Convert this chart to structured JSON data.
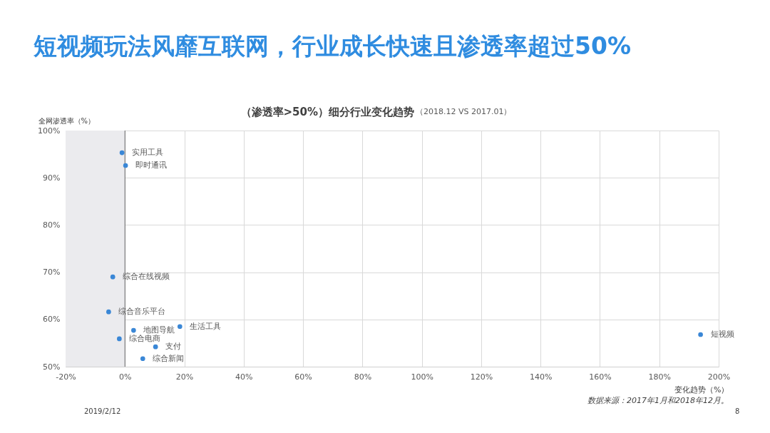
{
  "chart_data": {
    "type": "scatter",
    "title": "短视频玩法风靡互联网，行业成长快速且渗透率超过50%",
    "subtitle": "（渗透率>50%）细分行业变化趋势",
    "xlabel": "变化趋势（%）",
    "ylabel": "全网渗透率（%）",
    "annotations": [
      "（2018.12  VS 2017.01）",
      "数据来源：2017年1月和2018年12月。",
      "2019/2/12",
      "8"
    ],
    "series": [
      {
        "name": "实用工具",
        "color": "#3a87d6",
        "x": [
          -1.0
        ],
        "values": [
          95.3
        ]
      },
      {
        "name": "即时通讯",
        "color": "#3a87d6",
        "x": [
          0.2
        ],
        "values": [
          92.6
        ]
      },
      {
        "name": "综合在线视频",
        "color": "#3a87d6",
        "x": [
          -4.1
        ],
        "values": [
          69.0
        ]
      },
      {
        "name": "综合音乐平台",
        "color": "#3a87d6",
        "x": [
          -5.5
        ],
        "values": [
          61.6
        ]
      },
      {
        "name": "地图导航",
        "color": "#3a87d6",
        "x": [
          2.9
        ],
        "values": [
          57.7
        ]
      },
      {
        "name": "生活工具",
        "color": "#3a87d6",
        "x": [
          18.5
        ],
        "values": [
          58.5
        ]
      },
      {
        "name": "综合电商",
        "color": "#3a87d6",
        "x": [
          -1.9
        ],
        "values": [
          55.9
        ]
      },
      {
        "name": "支付",
        "color": "#3a87d6",
        "x": [
          10.3
        ],
        "values": [
          54.2
        ]
      },
      {
        "name": "综合新闻",
        "color": "#3a87d6",
        "x": [
          6.0
        ],
        "values": [
          51.7
        ]
      },
      {
        "name": "短视频",
        "color": "#3a87d6",
        "x": [
          193.9
        ],
        "values": [
          56.8
        ]
      }
    ],
    "xlim": [
      -20,
      200
    ],
    "xticks": [
      {
        "value": -20,
        "label": "-20%"
      },
      {
        "value": 0,
        "label": "0%"
      },
      {
        "value": 20,
        "label": "20%"
      },
      {
        "value": 40,
        "label": "40%"
      },
      {
        "value": 60,
        "label": "60%"
      },
      {
        "value": 80,
        "label": "80%"
      },
      {
        "value": 100,
        "label": "100%"
      },
      {
        "value": 120,
        "label": "120%"
      },
      {
        "value": 140,
        "label": "140%"
      },
      {
        "value": 160,
        "label": "160%"
      },
      {
        "value": 180,
        "label": "180%"
      },
      {
        "value": 200,
        "label": "200%"
      }
    ],
    "ylim": [
      50,
      100
    ],
    "yticks": [
      {
        "value": 50,
        "label": "50%"
      },
      {
        "value": 60,
        "label": "60%"
      },
      {
        "value": 70,
        "label": "70%"
      },
      {
        "value": 80,
        "label": "80%"
      },
      {
        "value": 90,
        "label": "90%"
      },
      {
        "value": 100,
        "label": "100%"
      }
    ],
    "grid": true,
    "legend": false,
    "marker": "circle",
    "bands": [
      {
        "axis": "x",
        "from": -20,
        "to": 0,
        "color": "#ebebee"
      }
    ],
    "ref_lines": [
      {
        "axis": "x",
        "value": 0,
        "color": "#666666"
      }
    ]
  }
}
